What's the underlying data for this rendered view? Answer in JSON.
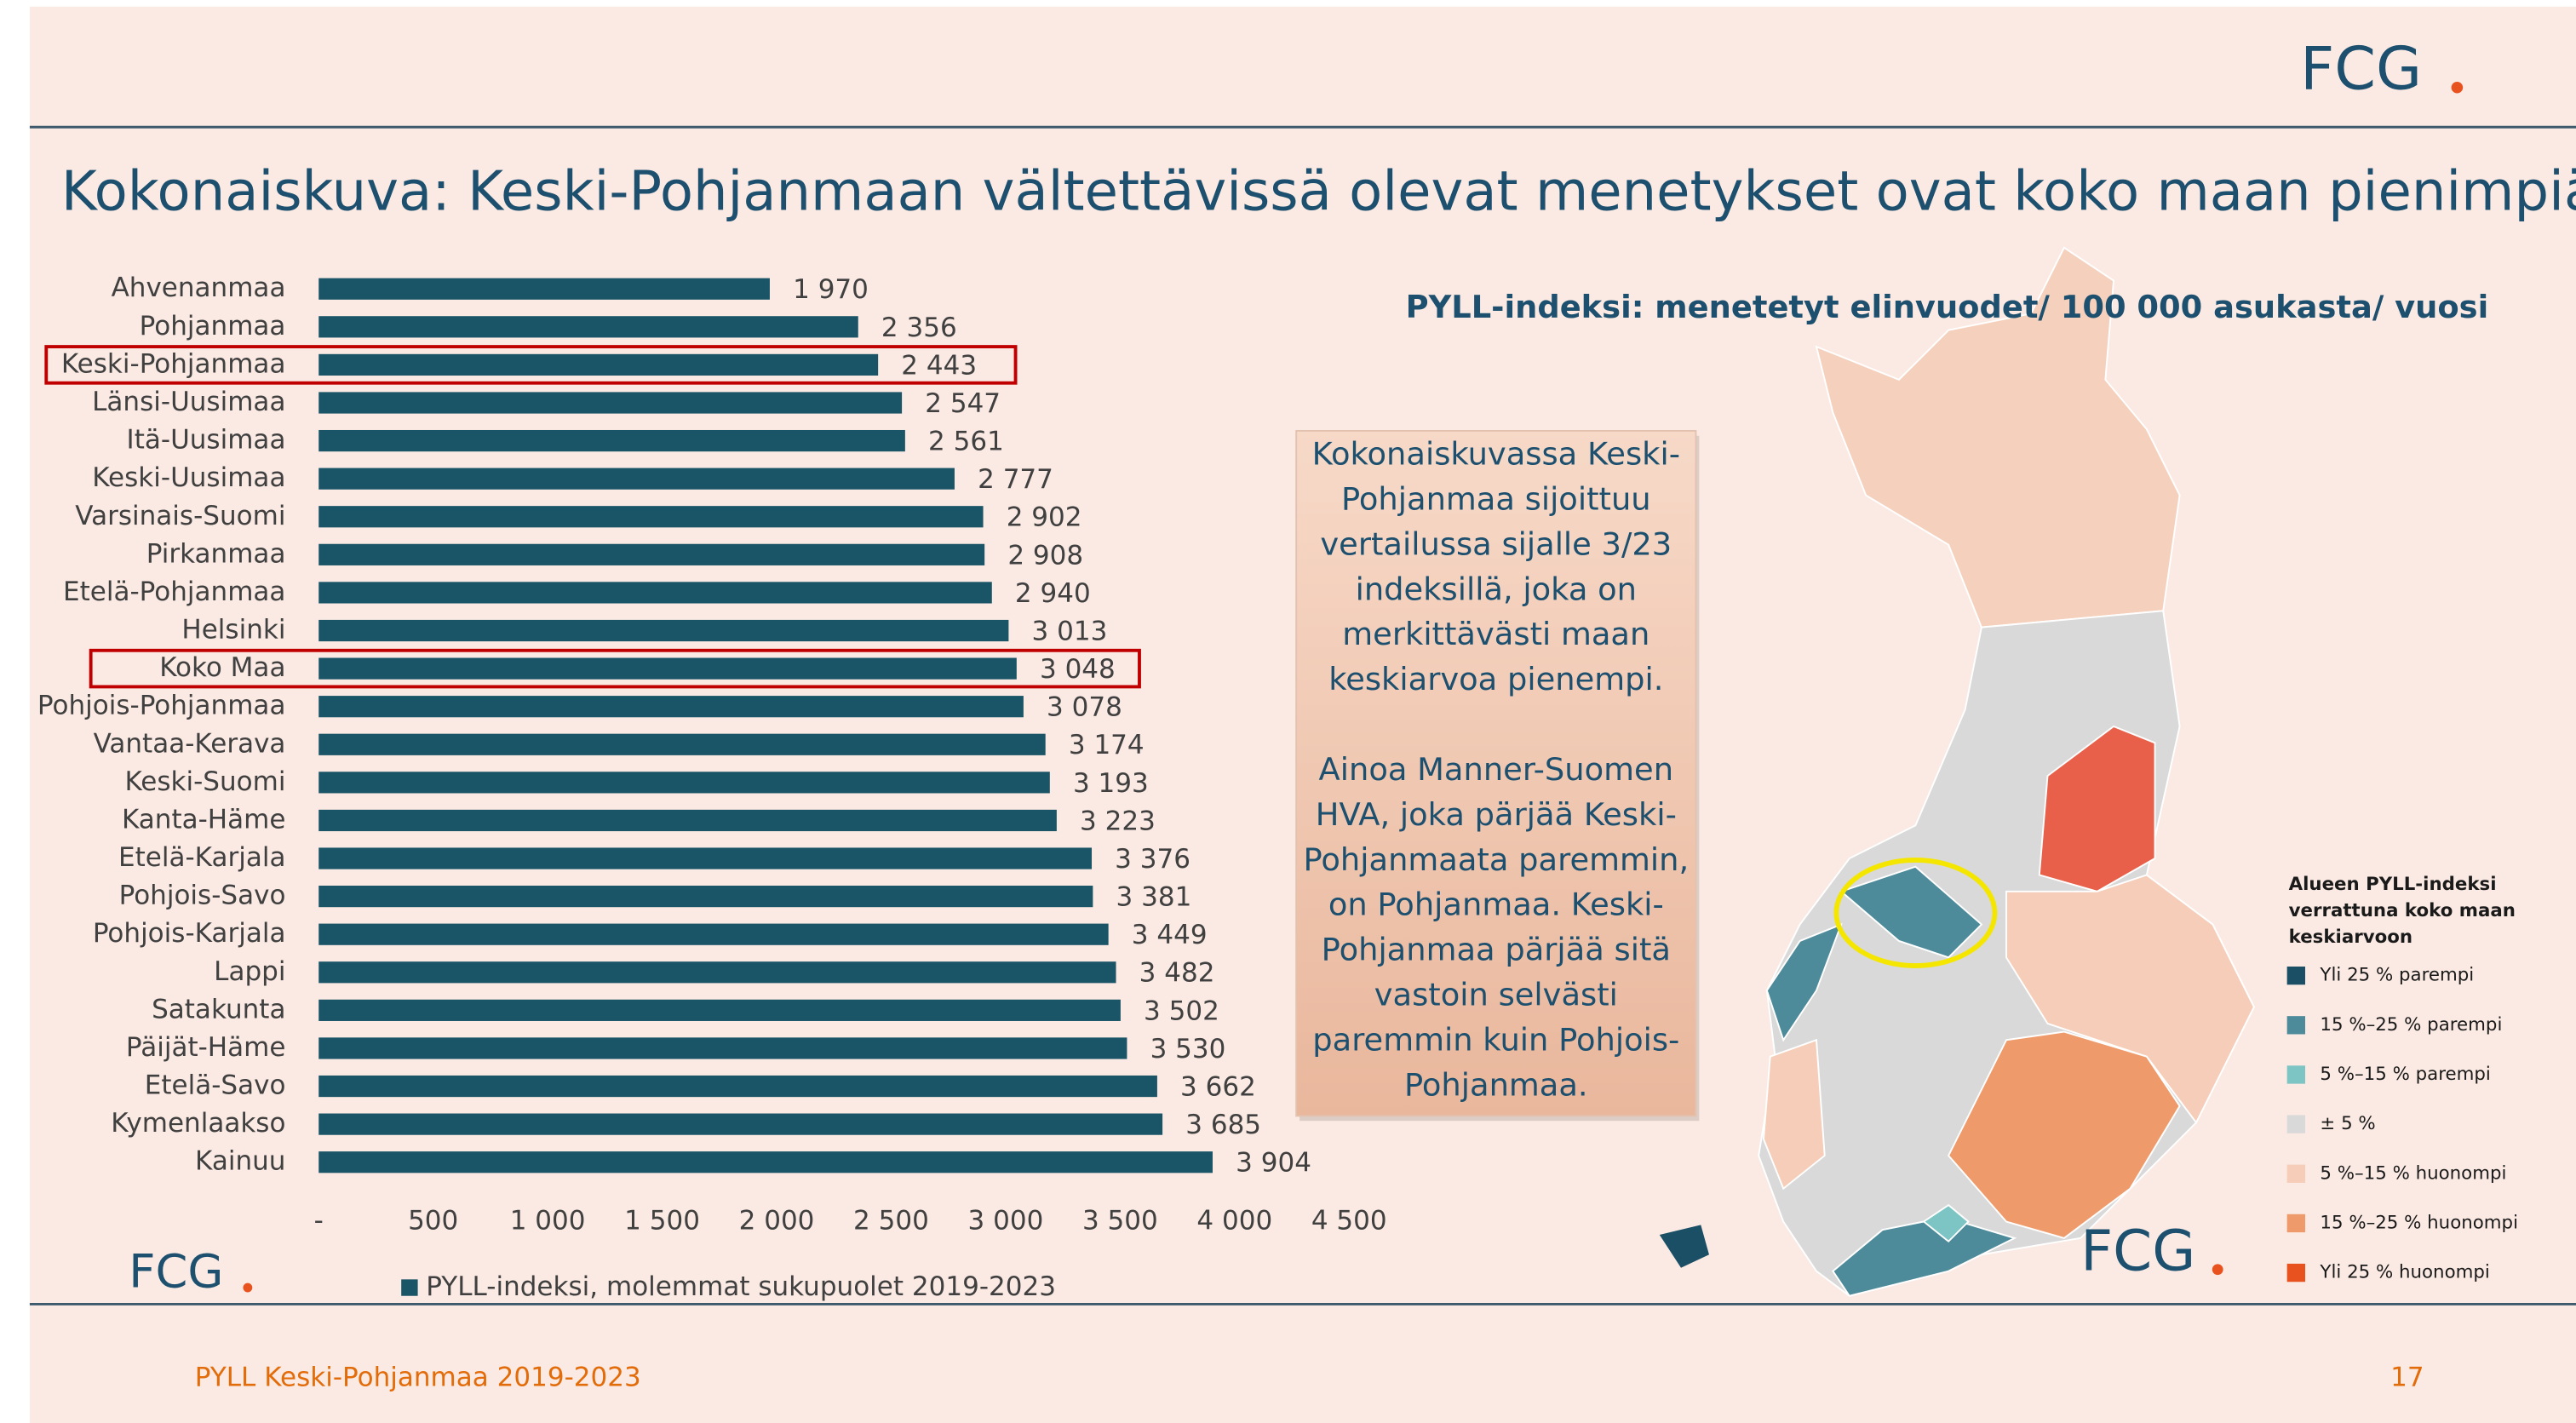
{
  "logo": "FCG",
  "title": "Kokonaiskuva: Keski-Pohjanmaan vältettävissä olevat menetykset ovat koko maan pienimpiä",
  "chart_data": {
    "type": "bar",
    "orientation": "horizontal",
    "categories": [
      "Ahvenanmaa",
      "Pohjanmaa",
      "Keski-Pohjanmaa",
      "Länsi-Uusimaa",
      "Itä-Uusimaa",
      "Keski-Uusimaa",
      "Varsinais-Suomi",
      "Pirkanmaa",
      "Etelä-Pohjanmaa",
      "Helsinki",
      "Koko Maa",
      "Pohjois-Pohjanmaa",
      "Vantaa-Kerava",
      "Keski-Suomi",
      "Kanta-Häme",
      "Etelä-Karjala",
      "Pohjois-Savo",
      "Pohjois-Karjala",
      "Lappi",
      "Satakunta",
      "Päijät-Häme",
      "Etelä-Savo",
      "Kymenlaakso",
      "Kainuu"
    ],
    "series": [
      {
        "name": "PYLL-indeksi, molemmat sukupuolet 2019-2023",
        "color": "#1a5567",
        "values": [
          1970,
          2356,
          2443,
          2547,
          2561,
          2777,
          2902,
          2908,
          2940,
          3013,
          3048,
          3078,
          3174,
          3193,
          3223,
          3376,
          3381,
          3449,
          3482,
          3502,
          3530,
          3662,
          3685,
          3904
        ],
        "value_labels": [
          "1 970",
          "2 356",
          "2 443",
          "2 547",
          "2 561",
          "2 777",
          "2 902",
          "2 908",
          "2 940",
          "3 013",
          "3 048",
          "3 078",
          "3 174",
          "3 193",
          "3 223",
          "3 376",
          "3 381",
          "3 449",
          "3 482",
          "3 502",
          "3 530",
          "3 662",
          "3 685",
          "3 904"
        ]
      }
    ],
    "xlim": [
      0,
      4500
    ],
    "xticks": [
      {
        "value": 0,
        "label": "-"
      },
      500,
      {
        "value": 1000,
        "label": "1 000"
      },
      {
        "value": 1500,
        "label": "1 500"
      },
      {
        "value": 2000,
        "label": "2 000"
      },
      {
        "value": 2500,
        "label": "2 500"
      },
      {
        "value": 3000,
        "label": "3 000"
      },
      {
        "value": 3500,
        "label": "3 500"
      },
      {
        "value": 4000,
        "label": "4 000"
      },
      {
        "value": 4500,
        "label": "4 500"
      }
    ],
    "highlighted": [
      2,
      10
    ],
    "highlight_color": "#c00000"
  },
  "note": [
    "Kokonaiskuvassa Keski-",
    "Pohjanmaa sijoittuu",
    "vertailussa sijalle 3/23",
    "indeksillä, joka on",
    "merkittävästi maan",
    "keskiarvoa pienempi.",
    "",
    "Ainoa Manner-Suomen",
    "HVA, joka pärjää Keski-",
    "Pohjanmaata paremmin,",
    "on Pohjanmaa. Keski-",
    "Pohjanmaa pärjää sitä",
    "vastoin selvästi",
    "paremmin kuin Pohjois-",
    "Pohjanmaa."
  ],
  "map": {
    "subtitle": "PYLL-indeksi:  menetetyt elinvuodet/ 100 000 asukasta/ vuosi",
    "legend_title": [
      "Alueen PYLL-indeksi",
      "verrattuna koko maan",
      "keskiarvoon"
    ],
    "legend": [
      {
        "label": "Yli 25 % parempi",
        "color": "#1a4f66"
      },
      {
        "label": "15 %–25 % parempi",
        "color": "#4d8a9a"
      },
      {
        "label": "5 %–15 % parempi",
        "color": "#7dc4c4"
      },
      {
        "label": "± 5 %",
        "color": "#d9d9d9"
      },
      {
        "label": "5 %–15 % huonompi",
        "color": "#f5cdb8"
      },
      {
        "label": "15 %–25 % huonompi",
        "color": "#ef9a6a"
      },
      {
        "label": "Yli 25 % huonompi",
        "color": "#e8521e"
      }
    ]
  },
  "footer": {
    "text": "PYLL Keski-Pohjanmaa 2019-2023",
    "page": "17"
  }
}
